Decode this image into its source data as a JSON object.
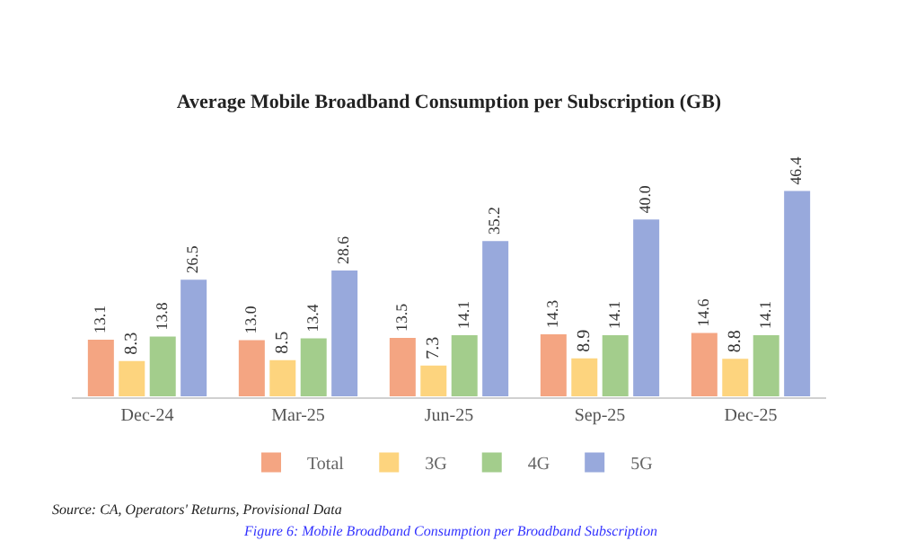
{
  "chart_data": {
    "type": "bar",
    "title": "Average Mobile Broadband Consumption per Subscription (GB)",
    "categories": [
      "Dec-24",
      "Mar-25",
      "Jun-25",
      "Sep-25",
      "Dec-25"
    ],
    "series": [
      {
        "name": "Total",
        "color": "#f4a582",
        "values": [
          13.1,
          13.0,
          13.5,
          14.3,
          14.6
        ],
        "value_labels": [
          "13.1",
          "13.0",
          "13.5",
          "14.3",
          "14.6"
        ]
      },
      {
        "name": "3G",
        "color": "#fdd47e",
        "values": [
          8.3,
          8.5,
          7.3,
          8.9,
          8.8
        ],
        "value_labels": [
          "8.3",
          "8.5",
          "7.3",
          "8.9",
          "8.8"
        ]
      },
      {
        "name": "4G",
        "color": "#a3cd8c",
        "values": [
          13.8,
          13.4,
          14.1,
          14.1,
          14.1
        ],
        "value_labels": [
          "13.8",
          "13.4",
          "14.1",
          "14.1",
          "14.1"
        ]
      },
      {
        "name": "5G",
        "color": "#98a9dc",
        "values": [
          26.5,
          28.6,
          35.2,
          40.0,
          46.4
        ],
        "value_labels": [
          "26.5",
          "28.6",
          "35.2",
          "40.0",
          "46.4"
        ]
      }
    ],
    "legend": "bottom",
    "annotations": [
      "Source: CA, Operators' Returns, Provisional Data",
      "Figure 6: Mobile Broadband Consumption per Broadband Subscription"
    ]
  }
}
